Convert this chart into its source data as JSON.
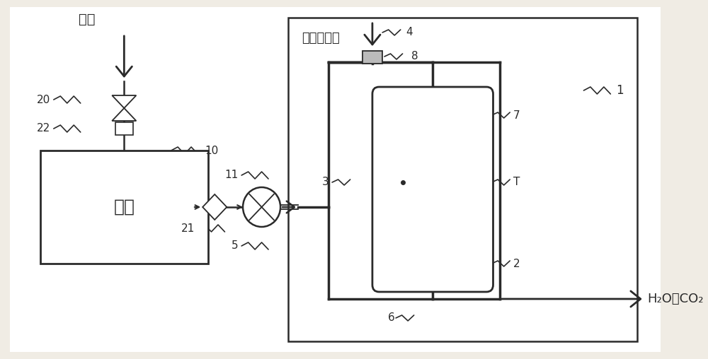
{
  "bg_color": "#f0ece4",
  "line_color": "#2a2a2a",
  "labels": {
    "formic_acid": "甲酸",
    "decomp_gas": "分解用气体",
    "chamber": "腔室",
    "output": "H₂O、CO₂"
  },
  "numbers": {
    "n1": "1",
    "n2": "2",
    "n3": "3",
    "n4": "4",
    "n5": "5",
    "n6": "6",
    "n7": "7",
    "n8": "8",
    "n10": "10",
    "n11": "11",
    "n20": "20",
    "n21": "21",
    "n22": "22",
    "nT": "T"
  }
}
